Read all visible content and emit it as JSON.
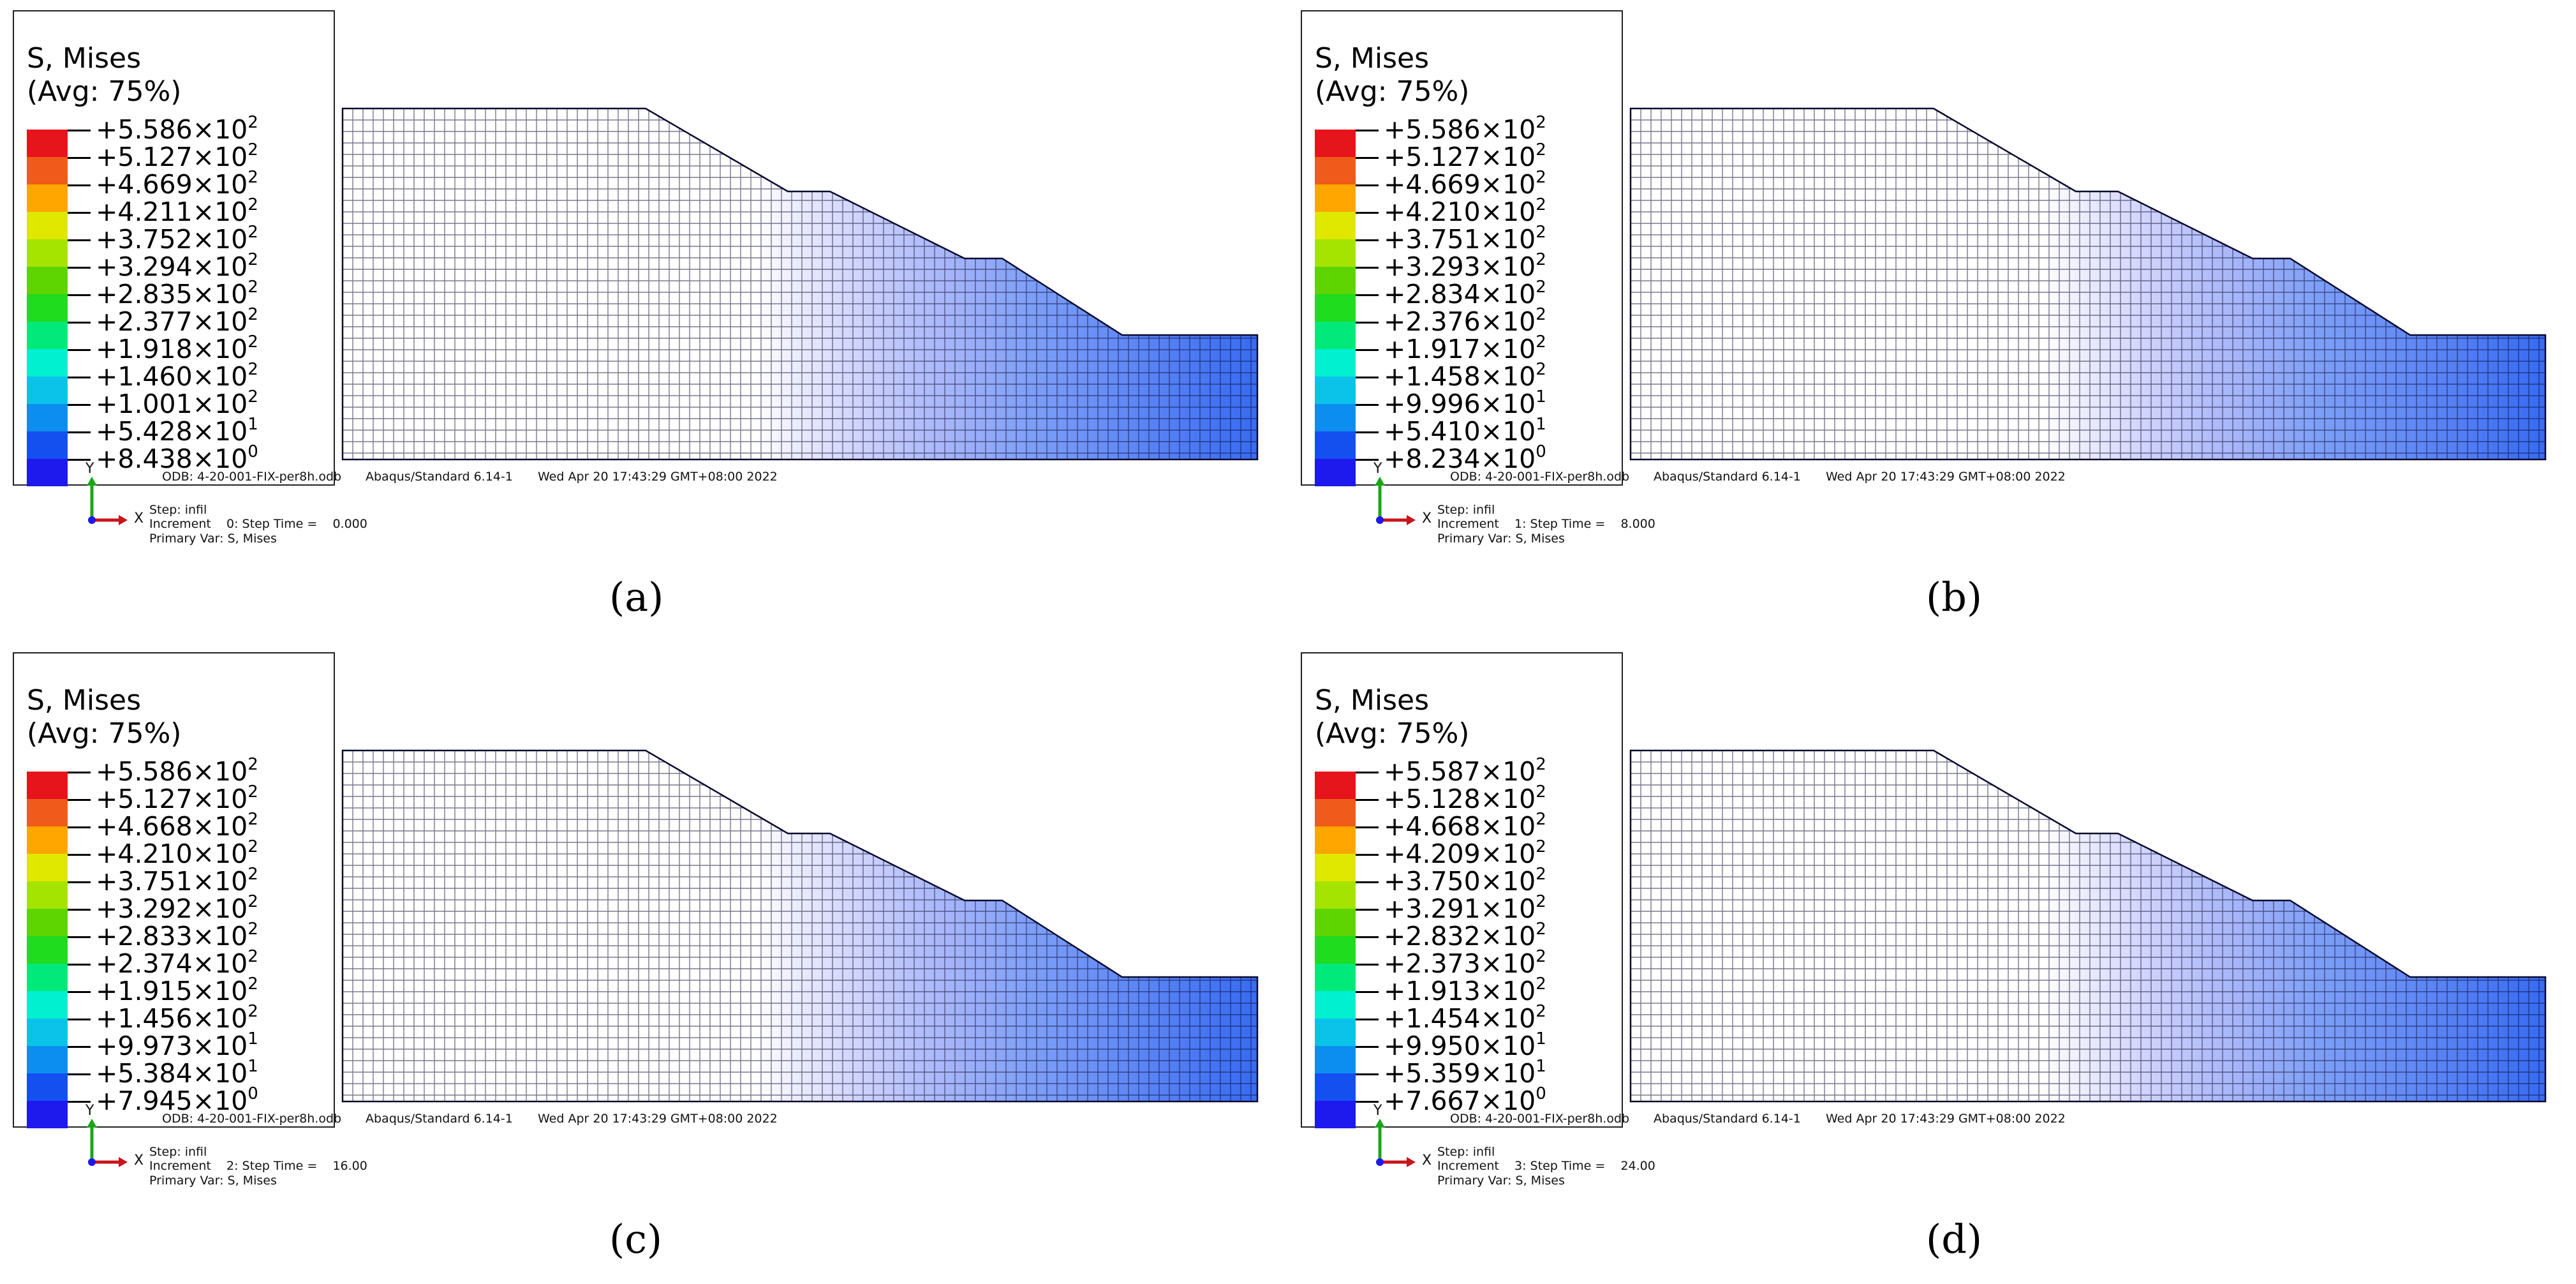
{
  "legend_colors": [
    "#e6141b",
    "#f05a1a",
    "#ffa600",
    "#e0e800",
    "#a5e400",
    "#5ed400",
    "#1fdc1f",
    "#00e97a",
    "#00f0d0",
    "#0bc3e9",
    "#0b8ef0",
    "#1450f0",
    "#1e19ec"
  ],
  "panels": [
    {
      "caption": "(a)",
      "title_line1": "S, Mises",
      "title_line2": "(Avg: 75%)",
      "legend_values": [
        {
          "mantissa": "+5.586×10",
          "exp": "2"
        },
        {
          "mantissa": "+5.127×10",
          "exp": "2"
        },
        {
          "mantissa": "+4.669×10",
          "exp": "2"
        },
        {
          "mantissa": "+4.211×10",
          "exp": "2"
        },
        {
          "mantissa": "+3.752×10",
          "exp": "2"
        },
        {
          "mantissa": "+3.294×10",
          "exp": "2"
        },
        {
          "mantissa": "+2.835×10",
          "exp": "2"
        },
        {
          "mantissa": "+2.377×10",
          "exp": "2"
        },
        {
          "mantissa": "+1.918×10",
          "exp": "2"
        },
        {
          "mantissa": "+1.460×10",
          "exp": "2"
        },
        {
          "mantissa": "+1.001×10",
          "exp": "2"
        },
        {
          "mantissa": "+5.428×10",
          "exp": "1"
        },
        {
          "mantissa": "+8.438×10",
          "exp": "0"
        }
      ],
      "odb": "ODB: 4-20-001-FIX-per8h.odb",
      "solver": "Abaqus/Standard 6.14-1",
      "date": "Wed Apr 20 17:43:29 GMT+08:00 2022",
      "step_line": "Step: infil",
      "increment_line": "Increment    0: Step Time =    0.000",
      "primary_var": "Primary Var: S, Mises",
      "axis_y": "Y",
      "axis_x": "X"
    },
    {
      "caption": "(b)",
      "title_line1": "S, Mises",
      "title_line2": "(Avg: 75%)",
      "legend_values": [
        {
          "mantissa": "+5.586×10",
          "exp": "2"
        },
        {
          "mantissa": "+5.127×10",
          "exp": "2"
        },
        {
          "mantissa": "+4.669×10",
          "exp": "2"
        },
        {
          "mantissa": "+4.210×10",
          "exp": "2"
        },
        {
          "mantissa": "+3.751×10",
          "exp": "2"
        },
        {
          "mantissa": "+3.293×10",
          "exp": "2"
        },
        {
          "mantissa": "+2.834×10",
          "exp": "2"
        },
        {
          "mantissa": "+2.376×10",
          "exp": "2"
        },
        {
          "mantissa": "+1.917×10",
          "exp": "2"
        },
        {
          "mantissa": "+1.458×10",
          "exp": "2"
        },
        {
          "mantissa": "+9.996×10",
          "exp": "1"
        },
        {
          "mantissa": "+5.410×10",
          "exp": "1"
        },
        {
          "mantissa": "+8.234×10",
          "exp": "0"
        }
      ],
      "odb": "ODB: 4-20-001-FIX-per8h.odb",
      "solver": "Abaqus/Standard 6.14-1",
      "date": "Wed Apr 20 17:43:29 GMT+08:00 2022",
      "step_line": "Step: infil",
      "increment_line": "Increment    1: Step Time =    8.000",
      "primary_var": "Primary Var: S, Mises",
      "axis_y": "Y",
      "axis_x": "X"
    },
    {
      "caption": "(c)",
      "title_line1": "S, Mises",
      "title_line2": "(Avg: 75%)",
      "legend_values": [
        {
          "mantissa": "+5.586×10",
          "exp": "2"
        },
        {
          "mantissa": "+5.127×10",
          "exp": "2"
        },
        {
          "mantissa": "+4.668×10",
          "exp": "2"
        },
        {
          "mantissa": "+4.210×10",
          "exp": "2"
        },
        {
          "mantissa": "+3.751×10",
          "exp": "2"
        },
        {
          "mantissa": "+3.292×10",
          "exp": "2"
        },
        {
          "mantissa": "+2.833×10",
          "exp": "2"
        },
        {
          "mantissa": "+2.374×10",
          "exp": "2"
        },
        {
          "mantissa": "+1.915×10",
          "exp": "2"
        },
        {
          "mantissa": "+1.456×10",
          "exp": "2"
        },
        {
          "mantissa": "+9.973×10",
          "exp": "1"
        },
        {
          "mantissa": "+5.384×10",
          "exp": "1"
        },
        {
          "mantissa": "+7.945×10",
          "exp": "0"
        }
      ],
      "odb": "ODB: 4-20-001-FIX-per8h.odb",
      "solver": "Abaqus/Standard 6.14-1",
      "date": "Wed Apr 20 17:43:29 GMT+08:00 2022",
      "step_line": "Step: infil",
      "increment_line": "Increment    2: Step Time =    16.00",
      "primary_var": "Primary Var: S, Mises",
      "axis_y": "Y",
      "axis_x": "X"
    },
    {
      "caption": "(d)",
      "title_line1": "S, Mises",
      "title_line2": "(Avg: 75%)",
      "legend_values": [
        {
          "mantissa": "+5.587×10",
          "exp": "2"
        },
        {
          "mantissa": "+5.128×10",
          "exp": "2"
        },
        {
          "mantissa": "+4.668×10",
          "exp": "2"
        },
        {
          "mantissa": "+4.209×10",
          "exp": "2"
        },
        {
          "mantissa": "+3.750×10",
          "exp": "2"
        },
        {
          "mantissa": "+3.291×10",
          "exp": "2"
        },
        {
          "mantissa": "+2.832×10",
          "exp": "2"
        },
        {
          "mantissa": "+2.373×10",
          "exp": "2"
        },
        {
          "mantissa": "+1.913×10",
          "exp": "2"
        },
        {
          "mantissa": "+1.454×10",
          "exp": "2"
        },
        {
          "mantissa": "+9.950×10",
          "exp": "1"
        },
        {
          "mantissa": "+5.359×10",
          "exp": "1"
        },
        {
          "mantissa": "+7.667×10",
          "exp": "0"
        }
      ],
      "odb": "ODB: 4-20-001-FIX-per8h.odb",
      "solver": "Abaqus/Standard 6.14-1",
      "date": "Wed Apr 20 17:43:29 GMT+08:00 2022",
      "step_line": "Step: infil",
      "increment_line": "Increment    3: Step Time =    24.00",
      "primary_var": "Primary Var: S, Mises",
      "axis_y": "Y",
      "axis_x": "X"
    }
  ]
}
